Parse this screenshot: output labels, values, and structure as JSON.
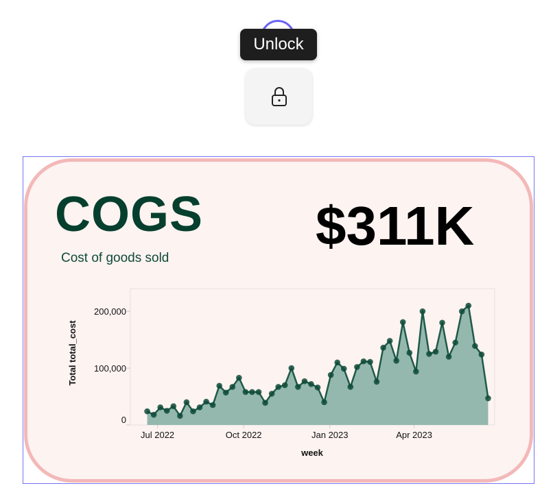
{
  "tooltip": {
    "label": "Unlock"
  },
  "lock_button": {
    "icon": "lock-icon"
  },
  "card": {
    "title": "COGS",
    "subtitle": "Cost of goods sold",
    "value": "$311K",
    "colors": {
      "title": "#073f2e",
      "border": "#f3b8b8",
      "background": "#fdf3f1"
    }
  },
  "chart_data": {
    "type": "area",
    "xlabel": "week",
    "ylabel": "Total total_cost",
    "ylim": [
      0,
      240000
    ],
    "yticks": [
      {
        "v": 0,
        "label": "0"
      },
      {
        "v": 100000,
        "label": "100,000"
      },
      {
        "v": 200000,
        "label": "200,000"
      }
    ],
    "xticks": [
      {
        "date": "2022-07-01",
        "label": "Jul 2022"
      },
      {
        "date": "2022-10-01",
        "label": "Oct 2022"
      },
      {
        "date": "2023-01-01",
        "label": "Jan 2023"
      },
      {
        "date": "2023-04-01",
        "label": "Apr 2023"
      }
    ],
    "xlim": [
      "2022-06-02",
      "2023-06-26"
    ],
    "grid": false,
    "colors": {
      "area": "#94b8ae",
      "line": "#1f5a48",
      "point": "#0e4a38"
    },
    "x_start": "2022-06-20",
    "x_step_days": 7,
    "values": [
      24000,
      18000,
      31000,
      25000,
      33000,
      16000,
      40000,
      24000,
      31000,
      41000,
      35000,
      69000,
      57000,
      67000,
      83000,
      58000,
      58000,
      58000,
      39000,
      55000,
      67000,
      70000,
      100000,
      67000,
      77000,
      72000,
      66000,
      40000,
      88000,
      110000,
      99000,
      67000,
      102000,
      112000,
      111000,
      76000,
      136000,
      148000,
      113000,
      181000,
      127000,
      94000,
      200000,
      125000,
      129000,
      180000,
      120000,
      145000,
      200000,
      210000,
      139000,
      124000,
      47000
    ]
  }
}
